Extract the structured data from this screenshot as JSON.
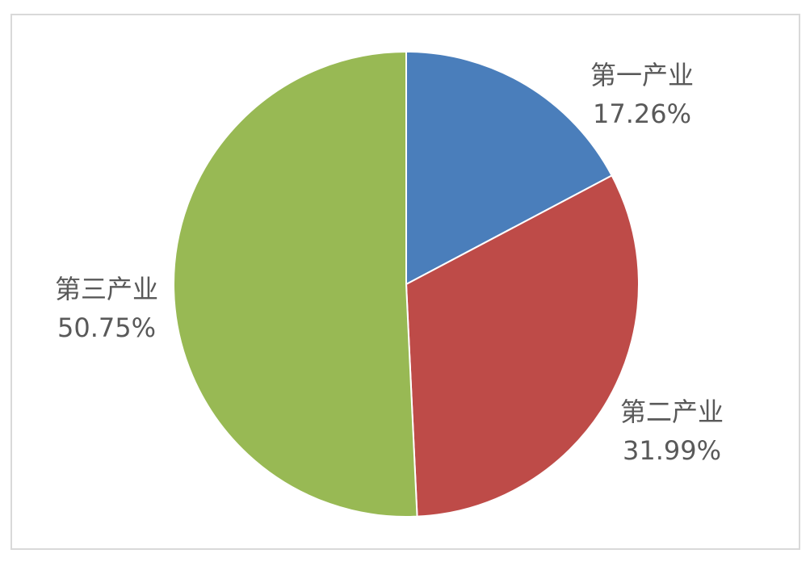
{
  "chart_data": {
    "type": "pie",
    "categories": [
      "第一产业",
      "第二产业",
      "第三产业"
    ],
    "values": [
      17.26,
      31.99,
      50.75
    ],
    "value_labels": [
      "17.26%",
      "31.99%",
      "50.75%"
    ],
    "colors": [
      "#4a7ebb",
      "#be4b48",
      "#98b954"
    ]
  }
}
